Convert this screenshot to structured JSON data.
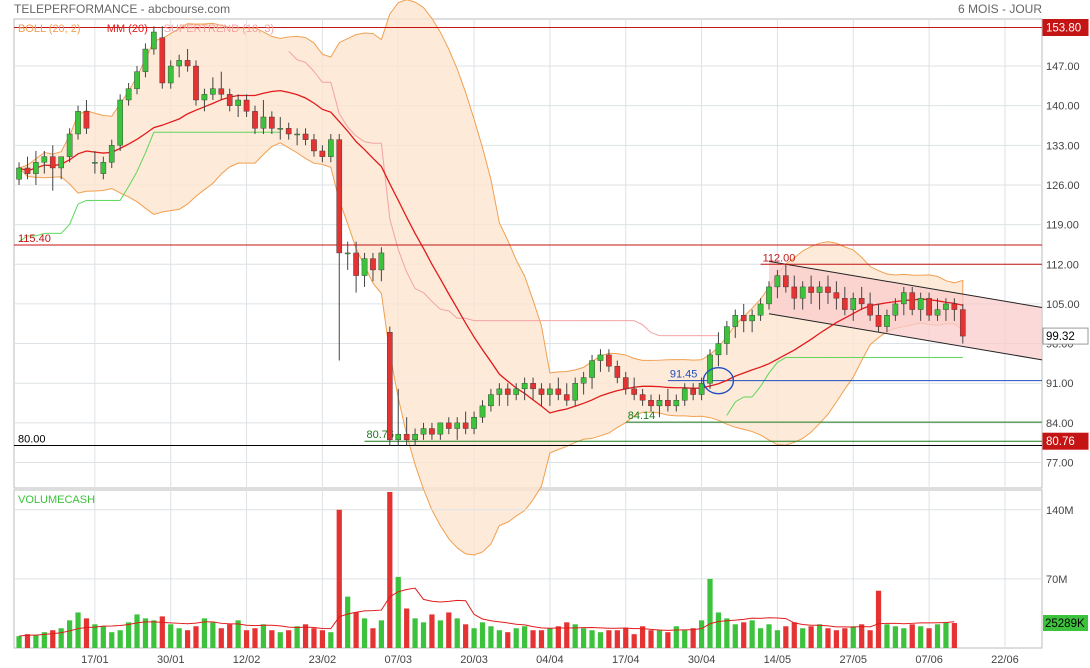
{
  "header": {
    "title": "TELEPERFORMANCE - abcbourse.com",
    "period": "6 MOIS - JOUR"
  },
  "colors": {
    "up": "#3cc23c",
    "down": "#e53232",
    "boll_fill": "#fde5d0",
    "boll_line": "#f1a050",
    "ma": "#e11b1b",
    "supertrend_up": "#5ad75a",
    "supertrend_down": "#f4a2a2",
    "resistance": "#c41414",
    "support": "#1c7a1c",
    "channel_fill": "#f9cccc",
    "grid": "#dde2e6",
    "axis_text": "#444",
    "blue": "#1f4fbf"
  },
  "chart_data": [
    {
      "type": "candlestick",
      "legend": [
        "BOLL (20, 2)",
        "MM (20)",
        "SUPERTREND (10, 3)"
      ],
      "ylim": [
        72.5,
        155.3
      ],
      "y_ticks": [
        77,
        84,
        91,
        98,
        105,
        112,
        119,
        126,
        133,
        140,
        147
      ],
      "y_tick_labels": [
        "77.00",
        "84.00",
        "91.00",
        "98.00",
        "105.00",
        "112.00",
        "119.00",
        "126.00",
        "133.00",
        "140.00",
        "147.00"
      ],
      "x_ticks": [
        {
          "label": "17/01",
          "i": 9
        },
        {
          "label": "30/01",
          "i": 18
        },
        {
          "label": "12/02",
          "i": 27
        },
        {
          "label": "23/02",
          "i": 36
        },
        {
          "label": "07/03",
          "i": 45
        },
        {
          "label": "20/03",
          "i": 54
        },
        {
          "label": "04/04",
          "i": 63
        },
        {
          "label": "17/04",
          "i": 72
        },
        {
          "label": "30/04",
          "i": 81
        },
        {
          "label": "14/05",
          "i": 90
        },
        {
          "label": "27/05",
          "i": 99
        },
        {
          "label": "07/06",
          "i": 108
        },
        {
          "label": "22/06",
          "i": 117
        }
      ],
      "candles": [
        [
          127,
          130,
          126,
          129
        ],
        [
          129,
          131,
          127,
          128
        ],
        [
          128,
          132,
          126,
          130
        ],
        [
          130,
          132,
          128,
          131
        ],
        [
          131,
          133,
          125,
          129
        ],
        [
          129,
          131,
          127,
          131
        ],
        [
          131,
          136,
          130,
          135
        ],
        [
          135,
          140,
          134,
          139
        ],
        [
          139,
          141,
          135,
          136
        ],
        [
          130,
          132,
          128,
          130
        ],
        [
          128,
          131,
          127,
          130
        ],
        [
          130,
          134,
          129,
          133
        ],
        [
          133,
          142,
          132,
          141
        ],
        [
          141,
          144,
          140,
          143
        ],
        [
          143,
          147,
          142,
          146
        ],
        [
          146,
          151,
          145,
          150
        ],
        [
          150,
          154,
          149,
          153
        ],
        [
          152,
          154,
          143,
          144
        ],
        [
          144,
          148,
          143,
          147
        ],
        [
          147,
          149,
          145,
          148
        ],
        [
          148,
          150,
          146,
          147
        ],
        [
          147,
          148,
          140,
          141
        ],
        [
          141,
          143,
          139,
          142
        ],
        [
          142,
          145,
          141,
          143
        ],
        [
          143,
          146,
          141,
          142
        ],
        [
          142,
          143,
          139,
          140
        ],
        [
          140,
          142,
          138,
          141
        ],
        [
          141,
          142,
          138,
          139
        ],
        [
          139,
          140,
          135,
          136
        ],
        [
          136,
          141,
          135,
          138
        ],
        [
          138,
          139,
          135,
          136
        ],
        [
          136,
          138,
          134,
          136
        ],
        [
          136,
          137,
          134,
          135
        ],
        [
          135,
          136,
          133,
          135
        ],
        [
          135,
          136,
          133,
          134
        ],
        [
          134,
          135,
          131,
          132
        ],
        [
          132,
          133,
          130,
          131
        ],
        [
          131,
          135,
          130,
          134
        ],
        [
          134,
          135,
          95,
          114
        ],
        [
          114,
          116,
          111,
          114
        ],
        [
          114,
          116,
          107,
          110
        ],
        [
          110,
          114,
          108,
          113
        ],
        [
          113,
          114,
          109,
          111
        ],
        [
          111,
          115,
          109,
          114
        ],
        [
          100,
          101,
          80,
          81
        ],
        [
          81,
          90,
          80,
          82
        ],
        [
          82,
          85,
          80,
          81
        ],
        [
          81,
          83,
          80,
          82
        ],
        [
          82,
          84,
          81,
          83
        ],
        [
          83,
          84,
          81,
          82
        ],
        [
          82,
          84,
          81,
          84
        ],
        [
          84,
          85,
          82,
          83
        ],
        [
          83,
          85,
          81,
          84
        ],
        [
          84,
          86,
          82,
          83
        ],
        [
          83,
          86,
          82,
          85
        ],
        [
          85,
          88,
          84,
          87
        ],
        [
          87,
          90,
          86,
          89
        ],
        [
          89,
          91,
          87,
          90
        ],
        [
          90,
          91,
          87,
          89
        ],
        [
          89,
          91,
          88,
          90
        ],
        [
          90,
          92,
          88,
          91
        ],
        [
          91,
          92,
          88,
          90
        ],
        [
          90,
          91,
          87,
          89
        ],
        [
          89,
          91,
          87,
          90
        ],
        [
          90,
          92,
          88,
          89
        ],
        [
          89,
          91,
          87,
          88
        ],
        [
          88,
          92,
          87,
          91
        ],
        [
          91,
          93,
          89,
          92
        ],
        [
          92,
          96,
          90,
          95
        ],
        [
          95,
          97,
          93,
          96
        ],
        [
          96,
          97,
          93,
          94
        ],
        [
          94,
          95,
          91,
          92
        ],
        [
          92,
          93,
          89,
          90
        ],
        [
          90,
          92,
          88,
          89
        ],
        [
          89,
          90,
          87,
          88
        ],
        [
          88,
          89,
          86,
          87
        ],
        [
          87,
          89,
          85,
          88
        ],
        [
          88,
          90,
          86,
          87
        ],
        [
          87,
          89,
          86,
          88
        ],
        [
          88,
          91,
          87,
          90
        ],
        [
          90,
          91,
          88,
          89
        ],
        [
          89,
          92,
          88,
          91
        ],
        [
          91,
          97,
          90,
          96
        ],
        [
          96,
          100,
          94,
          98
        ],
        [
          98,
          102,
          96,
          101
        ],
        [
          101,
          104,
          99,
          103
        ],
        [
          103,
          105,
          100,
          102
        ],
        [
          102,
          104,
          100,
          103
        ],
        [
          103,
          106,
          102,
          105
        ],
        [
          105,
          109,
          104,
          108
        ],
        [
          108,
          111,
          106,
          110
        ],
        [
          110,
          112,
          107,
          108
        ],
        [
          108,
          110,
          104,
          106
        ],
        [
          106,
          109,
          104,
          108
        ],
        [
          108,
          110,
          105,
          107
        ],
        [
          107,
          109,
          104,
          108
        ],
        [
          108,
          110,
          105,
          107
        ],
        [
          107,
          109,
          104,
          106
        ],
        [
          106,
          108,
          103,
          104
        ],
        [
          104,
          107,
          102,
          106
        ],
        [
          106,
          108,
          104,
          105
        ],
        [
          105,
          107,
          102,
          103
        ],
        [
          103,
          105,
          100,
          101
        ],
        [
          101,
          104,
          100,
          103
        ],
        [
          103,
          106,
          102,
          105
        ],
        [
          105,
          108,
          103,
          107
        ],
        [
          107,
          108,
          103,
          104
        ],
        [
          104,
          107,
          102,
          106
        ],
        [
          106,
          107,
          102,
          103
        ],
        [
          103,
          106,
          102,
          104
        ],
        [
          104,
          106,
          102,
          105
        ],
        [
          105,
          106,
          102,
          104
        ],
        [
          104,
          105,
          98,
          99.32
        ]
      ],
      "levels": [
        {
          "label": "153.80",
          "value": 153.8,
          "color": "#c41414",
          "side": "right"
        },
        {
          "label": "115.40",
          "value": 115.4,
          "color": "#c41414",
          "side": "left"
        },
        {
          "label": "112.00",
          "value": 112.0,
          "color": "#c41414",
          "side": "mid"
        },
        {
          "label": "91.45",
          "value": 91.45,
          "color": "#1f4fbf",
          "side": "mid"
        },
        {
          "label": "84.14",
          "value": 84.14,
          "color": "#1c7a1c",
          "side": "mid"
        },
        {
          "label": "80.76",
          "value": 80.76,
          "color": "#1c7a1c",
          "side": "mid"
        },
        {
          "label": "80.00",
          "value": 80.0,
          "color": "#000000",
          "side": "left"
        }
      ],
      "price_tags": [
        {
          "label": "153.80",
          "value": 153.8,
          "bg": "#c41414",
          "fg": "#ffffff"
        },
        {
          "label": "99.32",
          "value": 99.32,
          "bg": "#ffffff",
          "fg": "#000000"
        },
        {
          "label": "80.76",
          "value": 80.76,
          "bg": "#c41414",
          "fg": "#ffffff"
        }
      ]
    },
    {
      "type": "bar",
      "title": "VOLUMECASH",
      "ylim": [
        0,
        160
      ],
      "y_ticks": [
        70,
        140
      ],
      "y_tick_labels": [
        "70M",
        "140M"
      ],
      "last_value_label": "25289K",
      "values": [
        12,
        14,
        13,
        16,
        18,
        20,
        28,
        36,
        30,
        24,
        22,
        16,
        18,
        26,
        34,
        30,
        28,
        32,
        24,
        20,
        18,
        22,
        30,
        26,
        20,
        24,
        28,
        18,
        20,
        24,
        18,
        16,
        18,
        22,
        24,
        20,
        18,
        16,
        140,
        52,
        36,
        30,
        20,
        28,
        158,
        72,
        40,
        30,
        26,
        34,
        28,
        36,
        30,
        24,
        20,
        26,
        22,
        18,
        16,
        20,
        22,
        18,
        18,
        20,
        22,
        26,
        24,
        20,
        18,
        16,
        18,
        18,
        20,
        14,
        22,
        18,
        18,
        16,
        22,
        18,
        20,
        28,
        70,
        36,
        30,
        24,
        26,
        28,
        20,
        24,
        18,
        22,
        26,
        20,
        22,
        24,
        20,
        18,
        20,
        22,
        24,
        18,
        58,
        24,
        22,
        20,
        24,
        22,
        20,
        24,
        26,
        25.3
      ]
    }
  ]
}
